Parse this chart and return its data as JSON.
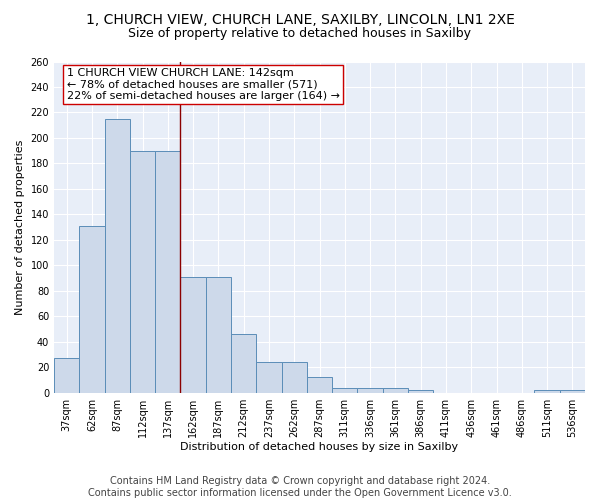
{
  "title": "1, CHURCH VIEW, CHURCH LANE, SAXILBY, LINCOLN, LN1 2XE",
  "subtitle": "Size of property relative to detached houses in Saxilby",
  "xlabel": "Distribution of detached houses by size in Saxilby",
  "ylabel": "Number of detached properties",
  "bar_color": "#cdd9ea",
  "bar_edge_color": "#5b8db8",
  "background_color": "#e8eef8",
  "grid_color": "white",
  "categories": [
    "37sqm",
    "62sqm",
    "87sqm",
    "112sqm",
    "137sqm",
    "162sqm",
    "187sqm",
    "212sqm",
    "237sqm",
    "262sqm",
    "287sqm",
    "311sqm",
    "336sqm",
    "361sqm",
    "386sqm",
    "411sqm",
    "436sqm",
    "461sqm",
    "486sqm",
    "511sqm",
    "536sqm"
  ],
  "values": [
    27,
    131,
    215,
    190,
    190,
    91,
    91,
    46,
    24,
    24,
    12,
    4,
    4,
    4,
    2,
    0,
    0,
    0,
    0,
    2,
    2
  ],
  "vline_x": 4.5,
  "vline_color": "#8b0000",
  "annotation_line1": "1 CHURCH VIEW CHURCH LANE: 142sqm",
  "annotation_line2": "← 78% of detached houses are smaller (571)",
  "annotation_line3": "22% of semi-detached houses are larger (164) →",
  "ylim": [
    0,
    260
  ],
  "yticks": [
    0,
    20,
    40,
    60,
    80,
    100,
    120,
    140,
    160,
    180,
    200,
    220,
    240,
    260
  ],
  "footer": "Contains HM Land Registry data © Crown copyright and database right 2024.\nContains public sector information licensed under the Open Government Licence v3.0.",
  "title_fontsize": 10,
  "subtitle_fontsize": 9,
  "annotation_fontsize": 8,
  "ylabel_fontsize": 8,
  "xlabel_fontsize": 8,
  "tick_fontsize": 7,
  "footer_fontsize": 7
}
